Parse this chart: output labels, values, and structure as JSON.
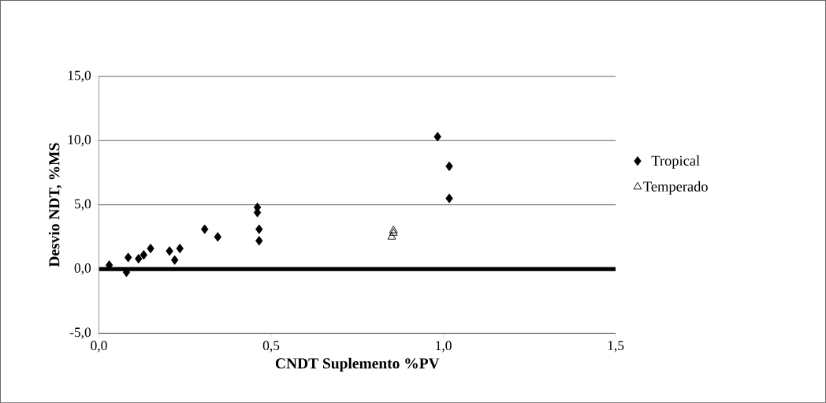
{
  "chart_data": {
    "type": "scatter",
    "xlabel": "CNDT Suplemento %PV",
    "ylabel": "Desvio NDT, %MS",
    "xlim": [
      0,
      1.5
    ],
    "ylim": [
      -5,
      15
    ],
    "xticks": [
      {
        "value": 0,
        "label": "0,0"
      },
      {
        "value": 0.5,
        "label": "0,5"
      },
      {
        "value": 1,
        "label": "1,0"
      },
      {
        "value": 1.5,
        "label": "1,5"
      }
    ],
    "yticks": [
      {
        "value": -5,
        "label": "-5,0"
      },
      {
        "value": 0,
        "label": "0,0"
      },
      {
        "value": 5,
        "label": "5,0"
      },
      {
        "value": 10,
        "label": "10,0"
      },
      {
        "value": 15,
        "label": "15,0"
      }
    ],
    "grid": "y",
    "legend": "right",
    "ref_lines": [
      {
        "axis": "y",
        "value": 0,
        "color": "#000000"
      }
    ],
    "series": [
      {
        "name": "Tropical",
        "color": "#000000",
        "marker": "diamond",
        "x": [
          0.03,
          0.08,
          0.085,
          0.115,
          0.13,
          0.15,
          0.205,
          0.22,
          0.235,
          0.307,
          0.345,
          0.46,
          0.46,
          0.465,
          0.465,
          0.983,
          1.017,
          1.017
        ],
        "values": [
          0.3,
          -0.25,
          0.9,
          0.8,
          1.1,
          1.6,
          1.4,
          0.7,
          1.6,
          3.1,
          2.5,
          4.8,
          4.4,
          3.1,
          2.2,
          10.3,
          8.0,
          5.5
        ]
      },
      {
        "name": "Temperado",
        "color": "#000000",
        "marker": "triangle",
        "x": [
          0.85,
          0.855,
          0.855
        ],
        "values": [
          2.5,
          2.8,
          3.0
        ]
      }
    ]
  }
}
